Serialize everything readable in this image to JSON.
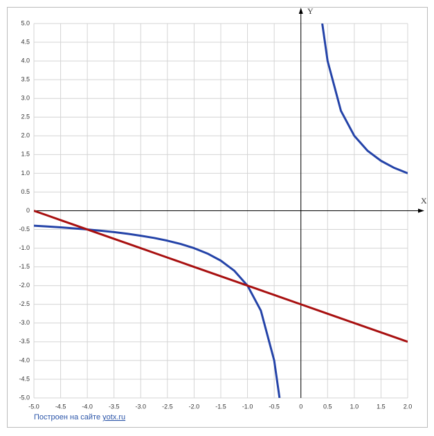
{
  "chart_data": {
    "type": "line",
    "x_label": "X",
    "y_label": "Y",
    "x": [
      -5,
      -4.75,
      -4.5,
      -4.25,
      -4,
      -3.75,
      -3.5,
      -3.25,
      -3,
      -2.75,
      -2.5,
      -2.25,
      -2,
      -1.75,
      -1.5,
      -1.25,
      -1,
      -0.75,
      -0.5,
      -0.4,
      0,
      0.4,
      0.5,
      0.75,
      1,
      1.25,
      1.5,
      1.75,
      2
    ],
    "series": [
      {
        "color": "#2443a8",
        "values": [
          -0.4,
          -0.421,
          -0.444,
          -0.471,
          -0.5,
          -0.533,
          -0.571,
          -0.615,
          -0.667,
          -0.727,
          -0.8,
          -0.889,
          -1,
          -1.143,
          -1.333,
          -1.6,
          -2,
          -2.667,
          -4,
          -5,
          null,
          5,
          4,
          2.667,
          2,
          1.6,
          1.333,
          1.143,
          1
        ]
      },
      {
        "color": "#a81010",
        "values": [
          0,
          -0.125,
          -0.25,
          -0.375,
          -0.5,
          -0.625,
          -0.75,
          -0.875,
          -1,
          -1.125,
          -1.25,
          -1.375,
          -1.5,
          -1.625,
          -1.75,
          -1.875,
          -2,
          -2.125,
          -2.25,
          -2.3,
          -2.5,
          -2.7,
          -2.75,
          -2.875,
          -3,
          -3.125,
          -3.25,
          -3.375,
          -3.5
        ]
      }
    ],
    "xlim": [
      -5,
      2
    ],
    "ylim": [
      -5,
      5
    ],
    "xticks": [
      {
        "value": -5,
        "label": "-5.0"
      },
      -4.5,
      {
        "value": -4,
        "label": "-4.0"
      },
      -3.5,
      {
        "value": -3,
        "label": "-3.0"
      },
      -2.5,
      {
        "value": -2,
        "label": "-2.0"
      },
      -1.5,
      {
        "value": -1,
        "label": "-1.0"
      },
      -0.5,
      0,
      0.5,
      {
        "value": 1,
        "label": "1.0"
      },
      1.5,
      {
        "value": 2,
        "label": "2.0"
      }
    ],
    "yticks": [
      {
        "value": 5,
        "label": "5.0"
      },
      4.5,
      {
        "value": 4,
        "label": "4.0"
      },
      3.5,
      {
        "value": 3,
        "label": "3.0"
      },
      2.5,
      {
        "value": 2,
        "label": "2.0"
      },
      1.5,
      {
        "value": 1,
        "label": "1.0"
      },
      0.5,
      0,
      -0.5,
      {
        "value": -1,
        "label": "-1.0"
      },
      -1.5,
      {
        "value": -2,
        "label": "-2.0"
      },
      -2.5,
      {
        "value": -3,
        "label": "-3.0"
      },
      -3.5,
      {
        "value": -4,
        "label": "-4.0"
      },
      -4.5,
      {
        "value": -5,
        "label": "-5.0"
      }
    ],
    "grid": true,
    "footer_text": "Построен на сайте",
    "footer_link": "yotx.ru"
  }
}
